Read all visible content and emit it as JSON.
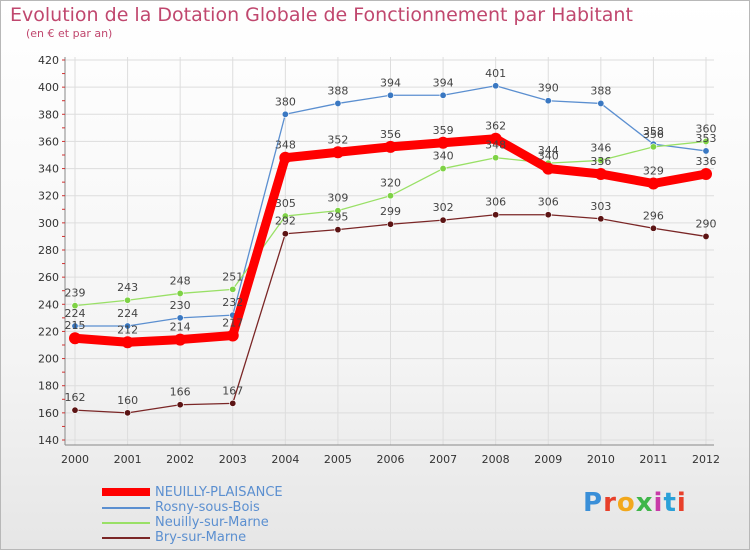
{
  "title": "Evolution de la Dotation Globale de Fonctionnement par Habitant",
  "subtitle": "(en € et par an)",
  "logo": "Proxiti",
  "colors": {
    "title": "#c0476e",
    "axis": "#333333",
    "grid": "#dddddd",
    "legend_text": "#5b8fd0"
  },
  "chart_data": {
    "type": "line",
    "title": "Evolution de la Dotation Globale de Fonctionnement par Habitant",
    "subtitle": "(en € et par an)",
    "xlabel": "",
    "ylabel": "",
    "categories": [
      "2000",
      "2001",
      "2002",
      "2003",
      "2004",
      "2005",
      "2006",
      "2007",
      "2008",
      "2009",
      "2010",
      "2011",
      "2012"
    ],
    "ylim": [
      140,
      420
    ],
    "yticks": [
      140,
      160,
      180,
      200,
      220,
      240,
      260,
      280,
      300,
      320,
      340,
      360,
      380,
      400,
      420
    ],
    "grid": true,
    "legend_position": "bottom-left",
    "series": [
      {
        "name": "NEUILLY-PLAISANCE",
        "color": "#ff0000",
        "marker_color": "#ff0000",
        "highlight": true,
        "values": [
          215,
          212,
          214,
          217,
          348,
          352,
          356,
          359,
          362,
          340,
          336,
          329,
          336
        ]
      },
      {
        "name": "Rosny-sous-Bois",
        "color": "#5b8fd0",
        "marker_color": "#3a78c2",
        "highlight": false,
        "values": [
          224,
          224,
          230,
          232,
          380,
          388,
          394,
          394,
          401,
          390,
          388,
          358,
          353
        ]
      },
      {
        "name": "Neuilly-sur-Marne",
        "color": "#99e066",
        "marker_color": "#7ed245",
        "highlight": false,
        "values": [
          239,
          243,
          248,
          251,
          305,
          309,
          320,
          340,
          348,
          344,
          346,
          356,
          360
        ]
      },
      {
        "name": "Bry-sur-Marne",
        "color": "#7a2626",
        "marker_color": "#5c1414",
        "highlight": false,
        "values": [
          162,
          160,
          166,
          167,
          292,
          295,
          299,
          302,
          306,
          306,
          303,
          296,
          290
        ]
      }
    ]
  }
}
